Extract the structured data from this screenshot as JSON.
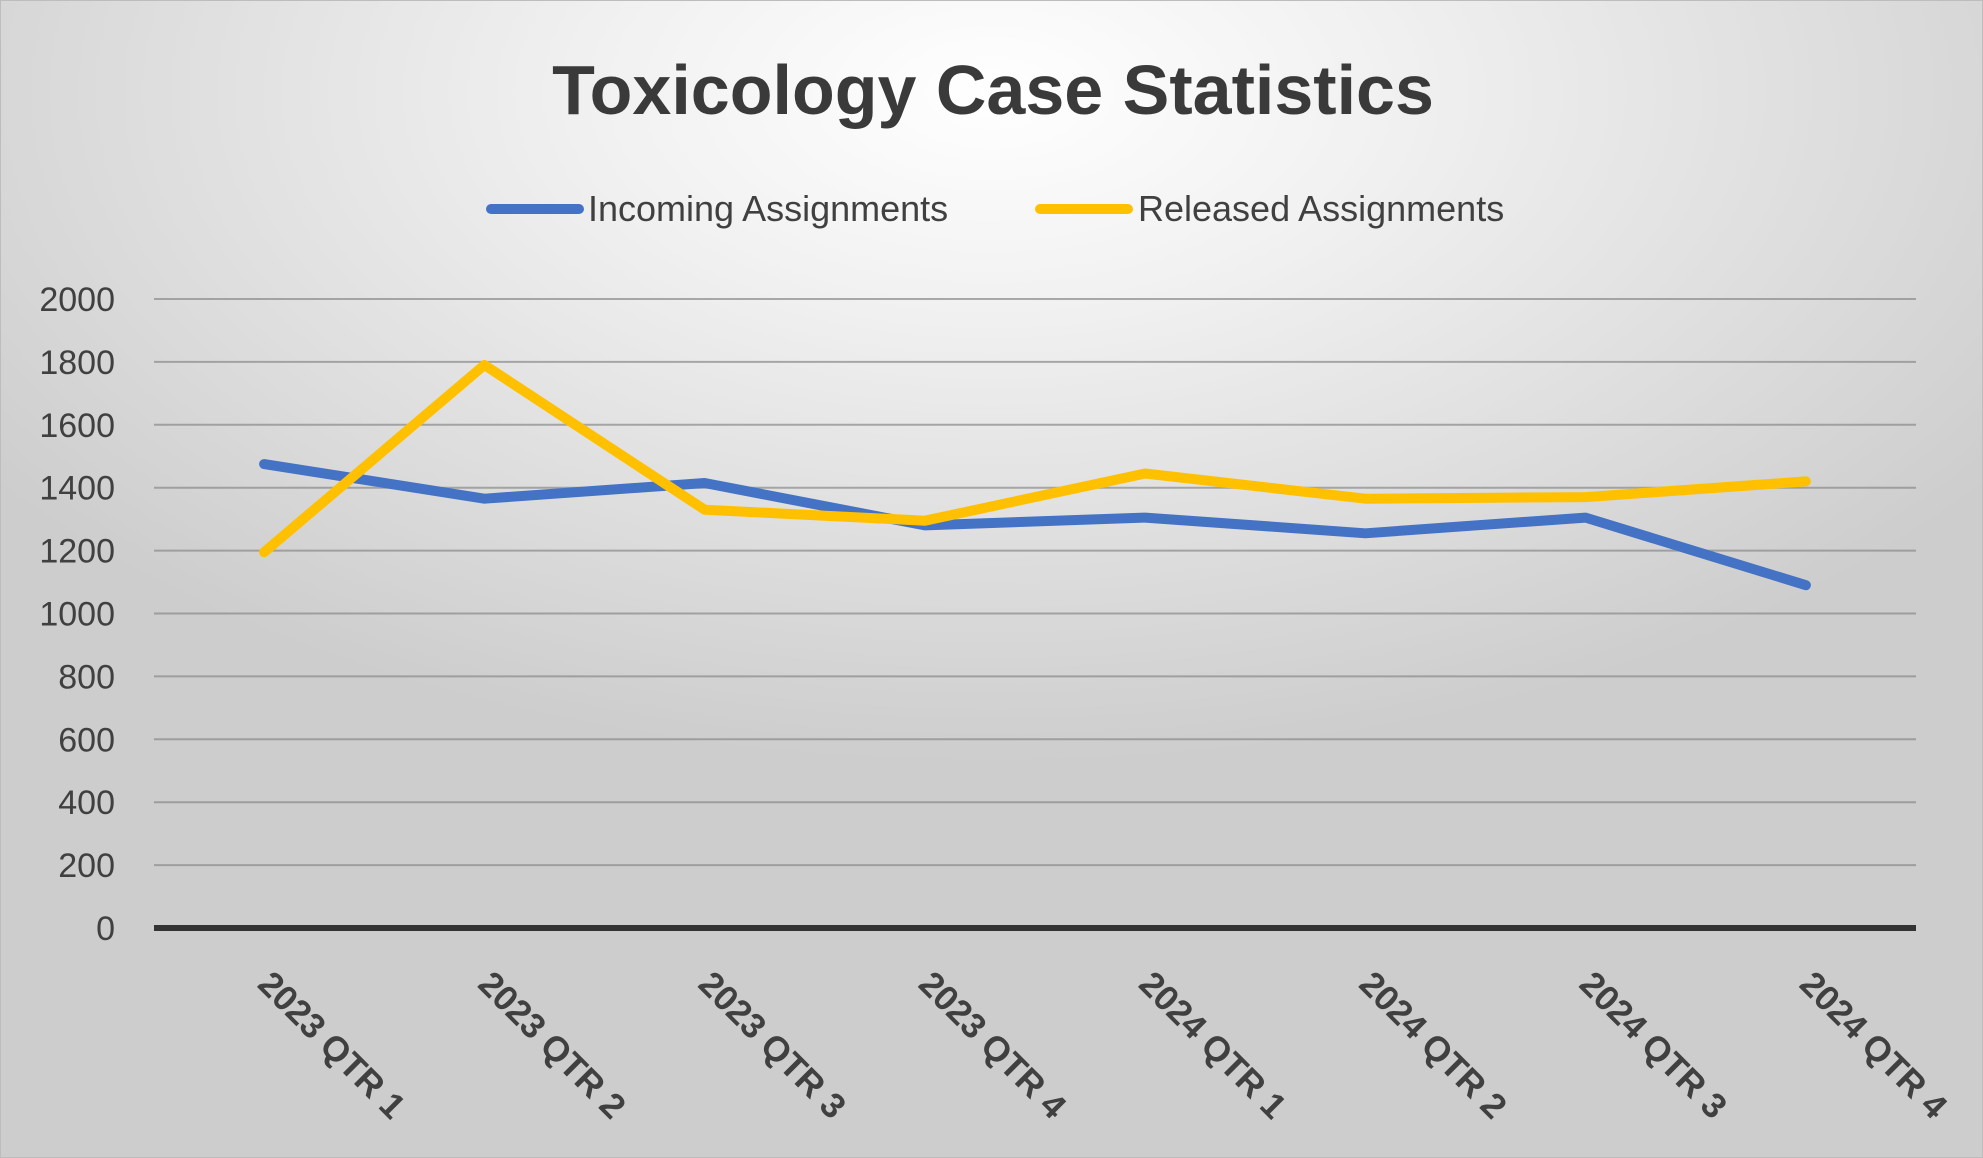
{
  "chart_data": {
    "type": "line",
    "title": "Toxicology Case Statistics",
    "categories": [
      "2023 QTR 1",
      "2023 QTR 2",
      "2023 QTR 3",
      "2023 QTR 4",
      "2024 QTR 1",
      "2024 QTR 2",
      "2024 QTR 3",
      "2024 QTR 4"
    ],
    "series": [
      {
        "name": "Incoming Assignments",
        "color": "#4472C4",
        "values": [
          1475,
          1365,
          1415,
          1280,
          1305,
          1255,
          1305,
          1090
        ]
      },
      {
        "name": "Released Assignments",
        "color": "#FFC000",
        "values": [
          1195,
          1790,
          1330,
          1295,
          1445,
          1365,
          1370,
          1420
        ]
      }
    ],
    "ylim": [
      0,
      2000
    ],
    "yticks": [
      0,
      200,
      400,
      600,
      800,
      1000,
      1200,
      1400,
      1600,
      1800,
      2000
    ],
    "grid": true,
    "legend": "top"
  }
}
